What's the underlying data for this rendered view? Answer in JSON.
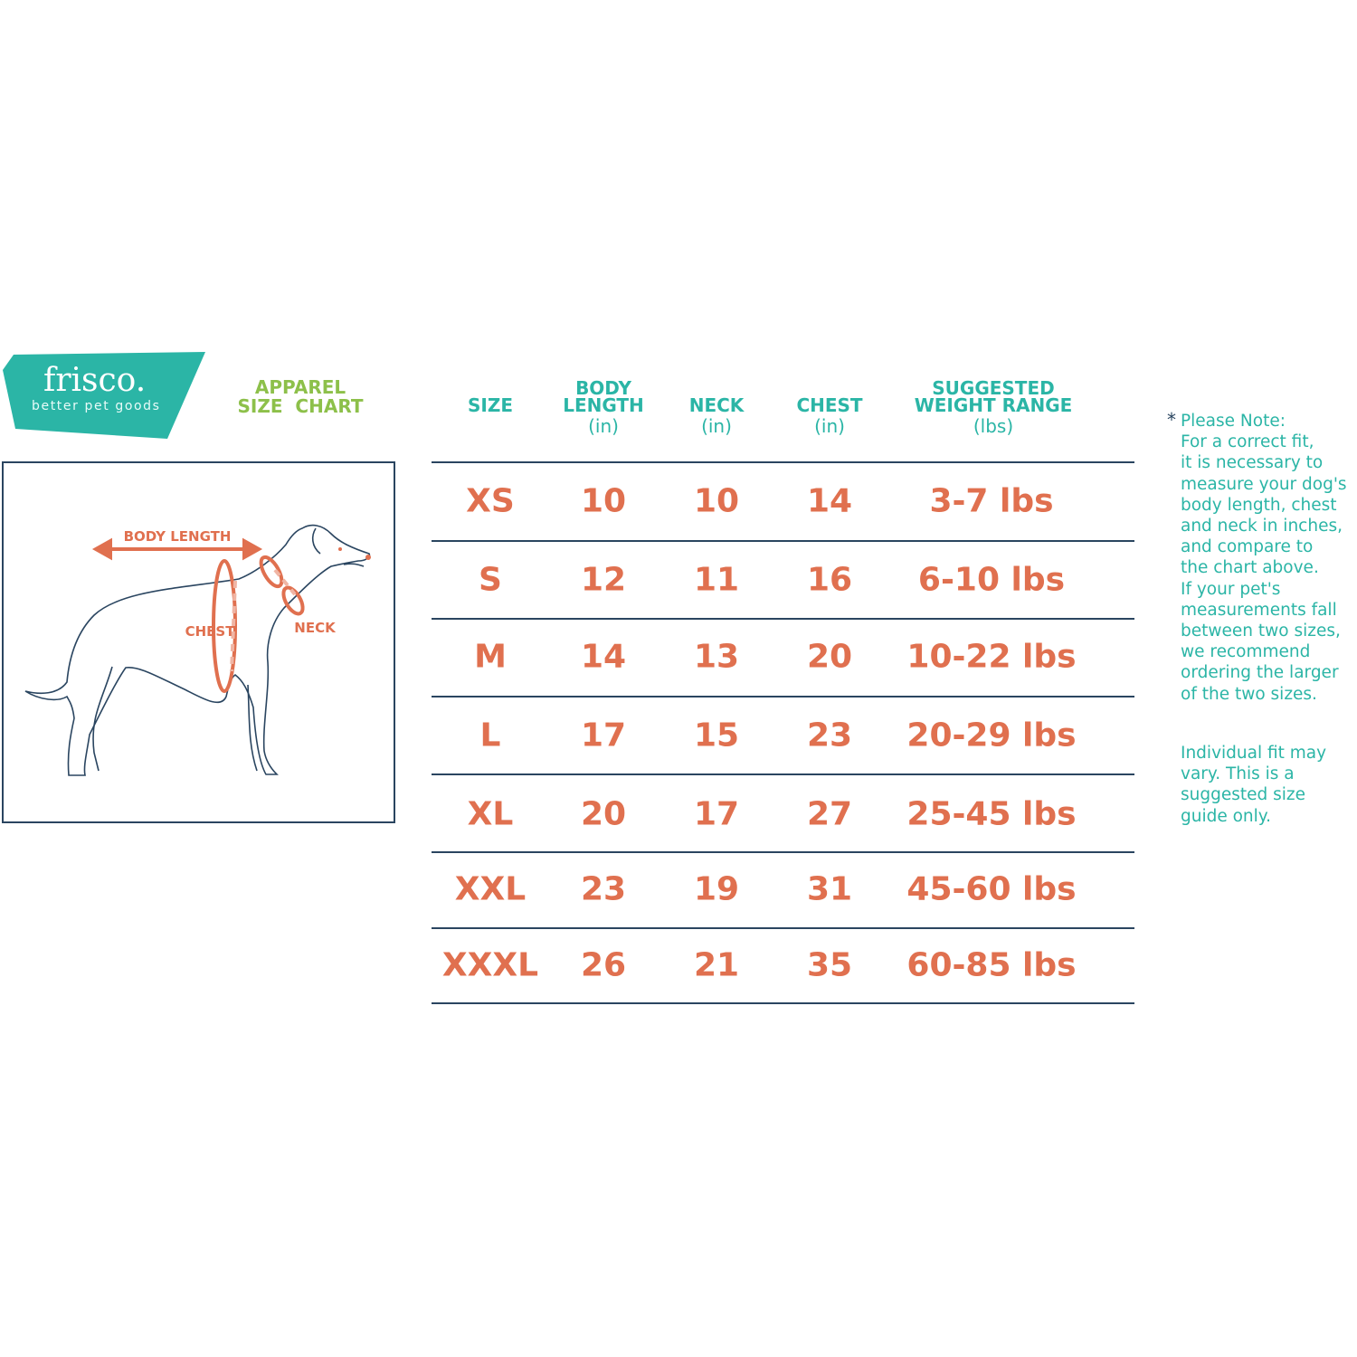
{
  "brand": {
    "name": "frisco.",
    "tagline": "better pet goods",
    "color": "#2bb5a6"
  },
  "title": "APPAREL SIZE CHART",
  "title_lines": [
    "APPAREL",
    "SIZE  CHART"
  ],
  "diagram": {
    "labels": {
      "body_length": "BODY LENGTH",
      "chest": "CHEST",
      "neck": "NECK"
    },
    "accent": "#e0704f",
    "outline": "#2a4560"
  },
  "table": {
    "headers": [
      {
        "lines": [
          "SIZE"
        ],
        "unit": ""
      },
      {
        "lines": [
          "BODY",
          "LENGTH"
        ],
        "unit": "(in)"
      },
      {
        "lines": [
          "NECK"
        ],
        "unit": "(in)"
      },
      {
        "lines": [
          "CHEST"
        ],
        "unit": "(in)"
      },
      {
        "lines": [
          "SUGGESTED",
          "WEIGHT RANGE"
        ],
        "unit": "(lbs)"
      }
    ],
    "rows": [
      [
        "XS",
        "10",
        "10",
        "14",
        "3-7 lbs"
      ],
      [
        "S",
        "12",
        "11",
        "16",
        "6-10 lbs"
      ],
      [
        "M",
        "14",
        "13",
        "20",
        "10-22 lbs"
      ],
      [
        "L",
        "17",
        "15",
        "23",
        "20-29 lbs"
      ],
      [
        "XL",
        "20",
        "17",
        "27",
        "25-45 lbs"
      ],
      [
        "XXL",
        "23",
        "19",
        "31",
        "45-60 lbs"
      ],
      [
        "XXXL",
        "26",
        "21",
        "35",
        "60-85 lbs"
      ]
    ]
  },
  "note": {
    "marker": "*",
    "text": "Please Note:\nFor a correct fit,\nit is necessary to\nmeasure your dog's\nbody length, chest\nand neck in inches,\nand compare to\nthe chart above.\nIf your pet's\nmeasurements fall\nbetween two sizes,\nwe recommend\nordering the larger\nof the two sizes.",
    "disclaimer": "Individual fit may\nvary. This is a\nsuggested size\nguide only."
  }
}
